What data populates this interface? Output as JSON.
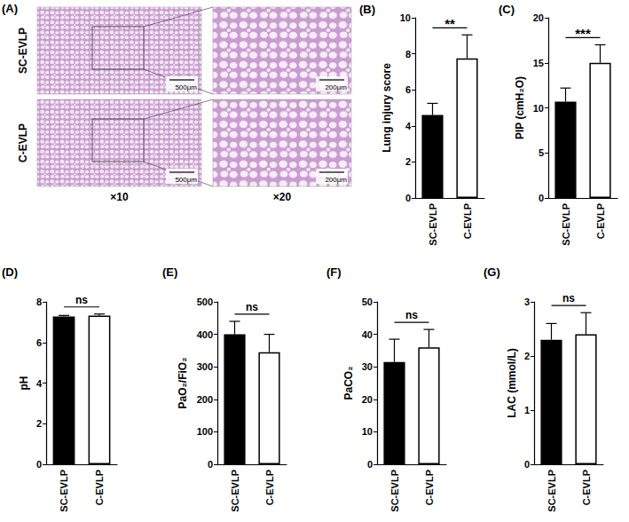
{
  "figure_a": {
    "panel_label": "(A)",
    "rows": [
      "SC-EVLP",
      "C-EVLP"
    ],
    "columns": [
      "×10",
      "×20"
    ],
    "scale_bars": [
      "500μm",
      "200μm"
    ]
  },
  "chart_data": [
    {
      "type": "bar",
      "panel_label": "(B)",
      "ylabel": "Lung injury score",
      "categories": [
        "SC-EVLP",
        "C-EVLP"
      ],
      "values": [
        4.6,
        7.75
      ],
      "errors": [
        0.65,
        1.3
      ],
      "colors": [
        "#000000",
        "#ffffff"
      ],
      "ylim": [
        0,
        10
      ],
      "yticks": [
        0,
        2,
        4,
        6,
        8,
        10
      ],
      "significance": "**",
      "grid": false
    },
    {
      "type": "bar",
      "panel_label": "(C)",
      "ylabel": "PIP (cmH₂O)",
      "categories": [
        "SC-EVLP",
        "C-EVLP"
      ],
      "values": [
        10.7,
        15.0
      ],
      "errors": [
        1.5,
        2.0
      ],
      "colors": [
        "#000000",
        "#ffffff"
      ],
      "ylim": [
        0,
        20
      ],
      "yticks": [
        0,
        5,
        10,
        15,
        20
      ],
      "significance": "***",
      "grid": false
    },
    {
      "type": "bar",
      "panel_label": "(D)",
      "ylabel": "pH",
      "categories": [
        "SC-EVLP",
        "C-EVLP"
      ],
      "values": [
        7.28,
        7.32
      ],
      "errors": [
        0.05,
        0.08
      ],
      "colors": [
        "#000000",
        "#ffffff"
      ],
      "ylim": [
        0,
        8
      ],
      "yticks": [
        0,
        2,
        4,
        6,
        8
      ],
      "significance": "ns",
      "grid": false
    },
    {
      "type": "bar",
      "panel_label": "(E)",
      "ylabel": "PaO₂/FiO₂",
      "categories": [
        "SC-EVLP",
        "C-EVLP"
      ],
      "values": [
        400,
        345
      ],
      "errors": [
        40,
        55
      ],
      "colors": [
        "#000000",
        "#ffffff"
      ],
      "ylim": [
        0,
        500
      ],
      "yticks": [
        0,
        100,
        200,
        300,
        400,
        500
      ],
      "significance": "ns",
      "grid": false
    },
    {
      "type": "bar",
      "panel_label": "(F)",
      "ylabel": "PaCO₂",
      "categories": [
        "SC-EVLP",
        "C-EVLP"
      ],
      "values": [
        31.5,
        36
      ],
      "errors": [
        7,
        5.5
      ],
      "colors": [
        "#000000",
        "#ffffff"
      ],
      "ylim": [
        0,
        50
      ],
      "yticks": [
        0,
        10,
        20,
        30,
        40,
        50
      ],
      "significance": "ns",
      "grid": false
    },
    {
      "type": "bar",
      "panel_label": "(G)",
      "ylabel": "LAC (mmol/L)",
      "categories": [
        "SC-EVLP",
        "C-EVLP"
      ],
      "values": [
        2.3,
        2.4
      ],
      "errors": [
        0.3,
        0.4
      ],
      "colors": [
        "#000000",
        "#ffffff"
      ],
      "ylim": [
        0,
        3
      ],
      "yticks": [
        0,
        1,
        2,
        3
      ],
      "significance": "ns",
      "grid": false
    }
  ]
}
